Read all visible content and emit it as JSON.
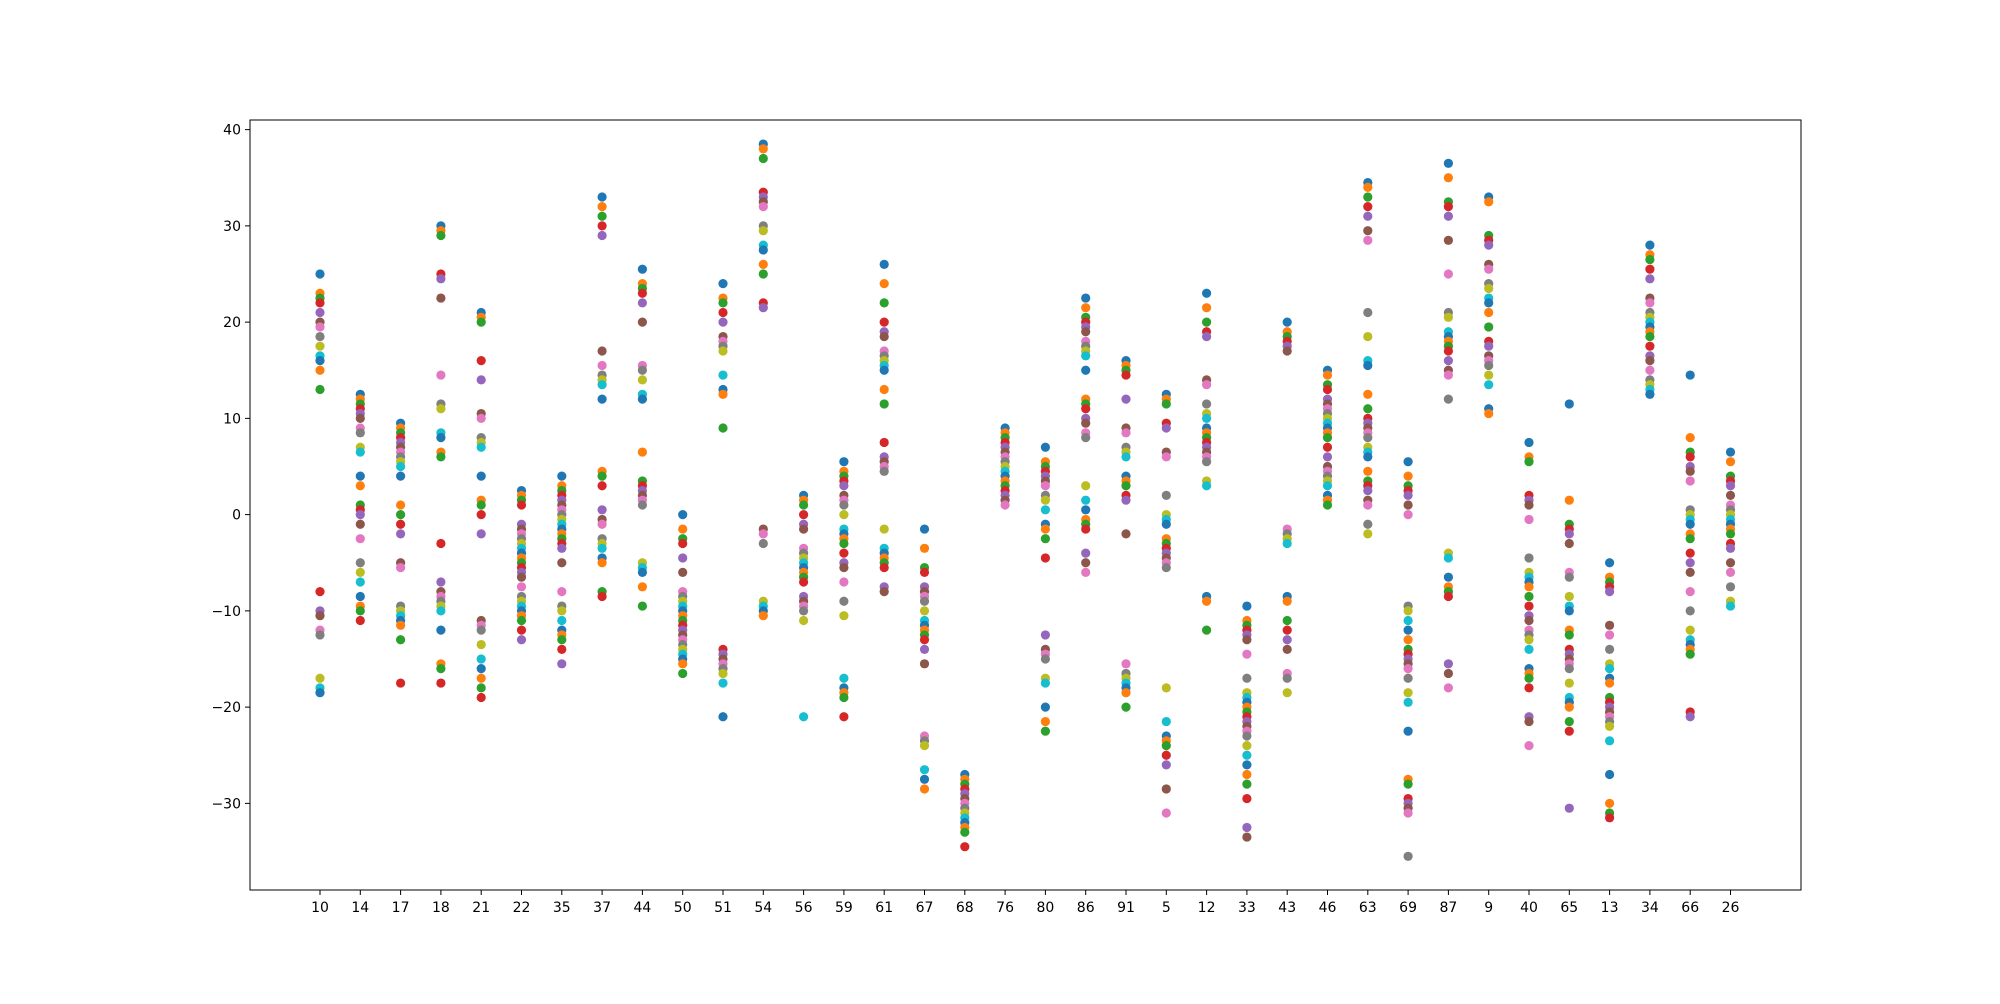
{
  "chart_data": {
    "type": "scatter",
    "title": "",
    "xlabel": "",
    "ylabel": "",
    "ylim": [
      -39,
      41
    ],
    "grid": false,
    "categories": [
      "10",
      "14",
      "17",
      "18",
      "21",
      "22",
      "35",
      "37",
      "44",
      "50",
      "51",
      "54",
      "56",
      "59",
      "61",
      "67",
      "68",
      "76",
      "80",
      "86",
      "91",
      "5",
      "12",
      "33",
      "43",
      "46",
      "63",
      "69",
      "87",
      "9",
      "40",
      "65",
      "13",
      "34",
      "66",
      "26"
    ],
    "y_ticks": [
      -30,
      -20,
      -10,
      0,
      10,
      20,
      30,
      40
    ],
    "color_cycle": [
      "#1f77b4",
      "#ff7f0e",
      "#2ca02c",
      "#d62728",
      "#9467bd",
      "#8c564b",
      "#e377c2",
      "#7f7f7f",
      "#bcbd22",
      "#17becf"
    ],
    "points": [
      [
        25,
        23,
        22.5,
        22,
        21,
        20,
        19.5,
        18.5,
        17.5,
        16.5,
        16,
        15,
        13,
        -8,
        -10,
        -10.5,
        -12,
        -12.5,
        -17,
        -18,
        -18.5
      ],
      [
        12.5,
        12,
        11.5,
        11,
        10.5,
        10,
        9,
        8.5,
        7,
        6.5,
        4,
        3,
        1,
        0.5,
        0,
        -1,
        -2.5,
        -5,
        -6,
        -7,
        -8.5,
        -9.5,
        -10,
        -11
      ],
      [
        9.5,
        9,
        8.5,
        8,
        7.5,
        7,
        6.5,
        6,
        5.5,
        5,
        4,
        1,
        0,
        -1,
        -2,
        -5,
        -5.5,
        -9.5,
        -10,
        -10.5,
        -11,
        -11.5,
        -13,
        -17.5
      ],
      [
        30,
        29.5,
        29,
        25,
        24.5,
        22.5,
        14.5,
        11.5,
        11,
        8.5,
        8,
        6.5,
        6,
        -3,
        -7,
        -8,
        -8.5,
        -9,
        -9.5,
        -10,
        -12,
        -15.5,
        -16,
        -17.5
      ],
      [
        21,
        20.5,
        20,
        16,
        14,
        10.5,
        10,
        8,
        7.5,
        7,
        4,
        1.5,
        1,
        0,
        -2,
        -11,
        -11.5,
        -12,
        -13.5,
        -15,
        -16,
        -17,
        -18,
        -19
      ],
      [
        2.5,
        2,
        1.5,
        1,
        -1,
        -1.5,
        -2,
        -2.5,
        -3,
        -3.5,
        -4,
        -4.5,
        -5,
        -5.5,
        -6,
        -6.5,
        -7.5,
        -8.5,
        -9,
        -9.5,
        -10,
        -10.5,
        -11,
        -12,
        -13
      ],
      [
        4,
        3,
        2.5,
        2,
        1.5,
        1,
        0.5,
        0,
        -0.5,
        -1,
        -1.5,
        -2,
        -2.5,
        -3,
        -3.5,
        -5,
        -8,
        -9.5,
        -10,
        -11,
        -12,
        -12.5,
        -13,
        -14,
        -15.5
      ],
      [
        33,
        32,
        31,
        30,
        29,
        17,
        15.5,
        14.5,
        14,
        13.5,
        12,
        4.5,
        4,
        3,
        0.5,
        -0.5,
        -1,
        -2.5,
        -3,
        -3.5,
        -4.5,
        -5,
        -8,
        -8.5
      ],
      [
        25.5,
        24,
        23.5,
        23,
        22,
        20,
        15.5,
        15,
        14,
        12.5,
        12,
        6.5,
        3.5,
        3,
        2.5,
        2,
        1.5,
        1,
        -5,
        -5.5,
        -6,
        -7.5,
        -9.5
      ],
      [
        0,
        -1.5,
        -2.5,
        -3,
        -4.5,
        -6,
        -8,
        -8.5,
        -9,
        -9.5,
        -10,
        -10.5,
        -11,
        -11.5,
        -12,
        -12.5,
        -13,
        -13.5,
        -14,
        -14.5,
        -15,
        -15.5,
        -16.5
      ],
      [
        24,
        22.5,
        22,
        21,
        20,
        18.5,
        18,
        17.5,
        17,
        14.5,
        13,
        12.5,
        9,
        -14,
        -14.5,
        -15,
        -15.5,
        -16,
        -16.5,
        -17.5,
        -21
      ],
      [
        38.5,
        38,
        37,
        33.5,
        33,
        32.5,
        32,
        30,
        29.5,
        28,
        27.5,
        26,
        25,
        22,
        21.5,
        -1.5,
        -2,
        -3,
        -9,
        -9.5,
        -10,
        -10.5
      ],
      [
        2,
        1.5,
        1,
        0,
        -1,
        -1.5,
        -3.5,
        -4,
        -4.5,
        -5,
        -5.5,
        -6,
        -6.5,
        -7,
        -8.5,
        -9,
        -9.5,
        -10,
        -11,
        -21
      ],
      [
        5.5,
        4.5,
        4,
        3.5,
        3,
        2,
        1.5,
        1,
        0,
        -1.5,
        -2,
        -2.5,
        -3,
        -4,
        -5,
        -5.5,
        -7,
        -9,
        -10.5,
        -17,
        -18,
        -18.5,
        -19,
        -21
      ],
      [
        26,
        24,
        22,
        20,
        19,
        18.5,
        17,
        16.5,
        16,
        15.5,
        15,
        13,
        11.5,
        7.5,
        6,
        5.5,
        5,
        4.5,
        -1.5,
        -3.5,
        -4,
        -4.5,
        -5,
        -5.5,
        -7.5,
        -8
      ],
      [
        -1.5,
        -3.5,
        -5.5,
        -6,
        -7.5,
        -8,
        -8.5,
        -9,
        -10,
        -11,
        -11.5,
        -12,
        -12.5,
        -13,
        -14,
        -15.5,
        -23,
        -23.5,
        -24,
        -26.5,
        -27.5,
        -28.5
      ],
      [
        -27,
        -27.5,
        -28,
        -28.5,
        -29,
        -29.5,
        -30,
        -30.5,
        -31,
        -31.5,
        -32,
        -32.5,
        -33,
        -34.5
      ],
      [
        9,
        8.5,
        8,
        7.5,
        7,
        6.5,
        6,
        5.5,
        5,
        4.5,
        4,
        3.5,
        3,
        2.5,
        2,
        1.5,
        1
      ],
      [
        7,
        5.5,
        5,
        4.5,
        4,
        3.5,
        3,
        2,
        1.5,
        0.5,
        -1,
        -1.5,
        -2.5,
        -4.5,
        -12.5,
        -14,
        -14.5,
        -15,
        -17,
        -17.5,
        -20,
        -21.5,
        -22.5
      ],
      [
        22.5,
        21.5,
        20.5,
        20,
        19.5,
        19,
        18,
        17.5,
        17,
        16.5,
        15,
        12,
        11.5,
        11,
        10,
        9.5,
        8.5,
        8,
        3,
        1.5,
        0.5,
        -0.5,
        -1,
        -1.5,
        -4,
        -5,
        -6
      ],
      [
        16,
        15.5,
        15,
        14.5,
        12,
        9,
        8.5,
        7,
        6.5,
        6,
        4,
        3.5,
        3,
        2,
        1.5,
        -2,
        -15.5,
        -16.5,
        -17,
        -17.5,
        -18,
        -18.5,
        -20
      ],
      [
        12.5,
        12,
        11.5,
        9.5,
        9,
        6.5,
        6,
        2,
        0,
        -0.5,
        -1,
        -2.5,
        -3,
        -3.5,
        -4,
        -4.5,
        -5,
        -5.5,
        -18,
        -21.5,
        -23,
        -23.5,
        -24,
        -25,
        -26,
        -28.5,
        -31
      ],
      [
        23,
        21.5,
        20,
        19,
        18.5,
        14,
        13.5,
        11.5,
        10.5,
        10,
        9,
        8.5,
        8,
        7.5,
        7,
        6.5,
        6,
        5.5,
        3.5,
        3,
        -8.5,
        -9,
        -12
      ],
      [
        -9.5,
        -11,
        -11.5,
        -12,
        -12.5,
        -13,
        -14.5,
        -17,
        -18.5,
        -19,
        -19.5,
        -20,
        -20.5,
        -21,
        -21.5,
        -22,
        -22.5,
        -23,
        -24,
        -25,
        -26,
        -27,
        -28,
        -29.5,
        -32.5,
        -33.5
      ],
      [
        20,
        19,
        18.5,
        18,
        17.5,
        17,
        -1.5,
        -2,
        -2.5,
        -3,
        -8.5,
        -9,
        -11,
        -12,
        -13,
        -14,
        -16.5,
        -17,
        -18.5
      ],
      [
        15,
        14.5,
        13.5,
        13,
        12,
        11.5,
        11,
        10.5,
        10,
        9.5,
        9,
        8.5,
        8,
        7,
        6,
        5,
        4.5,
        4,
        3.5,
        3,
        2,
        1.5,
        1
      ],
      [
        34.5,
        34,
        33,
        32,
        31,
        29.5,
        28.5,
        21,
        18.5,
        16,
        15.5,
        12.5,
        11,
        10,
        9.5,
        9,
        8.5,
        8,
        7,
        6.5,
        6,
        4.5,
        3.5,
        3,
        2.5,
        1.5,
        1,
        -1,
        -2
      ],
      [
        5.5,
        4,
        3,
        2.5,
        2,
        1,
        0,
        -9.5,
        -10,
        -11,
        -12,
        -13,
        -14,
        -14.5,
        -15,
        -15.5,
        -16,
        -17,
        -18.5,
        -19.5,
        -22.5,
        -27.5,
        -28,
        -29.5,
        -30,
        -30.5,
        -31,
        -35.5
      ],
      [
        36.5,
        35,
        32.5,
        32,
        31,
        28.5,
        25,
        21,
        20.5,
        19,
        18.5,
        18,
        17.5,
        17,
        16,
        15,
        14.5,
        12,
        -4,
        -4.5,
        -6.5,
        -7.5,
        -8,
        -8.5,
        -15.5,
        -16.5,
        -18
      ],
      [
        33,
        32.5,
        29,
        28.5,
        28,
        26,
        25.5,
        24,
        23.5,
        22.5,
        22,
        21,
        19.5,
        18,
        17.5,
        16.5,
        16,
        15.5,
        14.5,
        13.5,
        11,
        10.5
      ],
      [
        7.5,
        6,
        5.5,
        2,
        1.5,
        1,
        -0.5,
        -4.5,
        -6,
        -6.5,
        -7,
        -7.5,
        -8.5,
        -9.5,
        -10.5,
        -11,
        -12,
        -12.5,
        -13,
        -14,
        -16,
        -16.5,
        -17,
        -18,
        -21,
        -21.5,
        -24
      ],
      [
        11.5,
        1.5,
        -1,
        -1.5,
        -2,
        -3,
        -6,
        -6.5,
        -8.5,
        -9.5,
        -10,
        -12,
        -12.5,
        -14,
        -14.5,
        -15,
        -15.5,
        -16,
        -17.5,
        -19,
        -19.5,
        -20,
        -21.5,
        -22.5,
        -30.5
      ],
      [
        -5,
        -6.5,
        -7,
        -7.5,
        -8,
        -11.5,
        -12.5,
        -14,
        -15.5,
        -16,
        -17,
        -17.5,
        -19,
        -19.5,
        -20,
        -20.5,
        -21,
        -21.5,
        -22,
        -23.5,
        -27,
        -30,
        -31,
        -31.5
      ],
      [
        28,
        27,
        26.5,
        25.5,
        24.5,
        22.5,
        22,
        21,
        20.5,
        20,
        19.5,
        19,
        18.5,
        17.5,
        16.5,
        16,
        15,
        14,
        13.5,
        13,
        12.5
      ],
      [
        14.5,
        8,
        6.5,
        6,
        5,
        4.5,
        3.5,
        0.5,
        0,
        -0.5,
        -1,
        -2,
        -2.5,
        -4,
        -5,
        -6,
        -8,
        -10,
        -12,
        -13,
        -13.5,
        -14,
        -14.5,
        -20.5,
        -21
      ],
      [
        6.5,
        5.5,
        4,
        3.5,
        3,
        2,
        1,
        0.5,
        0,
        -0.5,
        -1,
        -1.5,
        -2,
        -3,
        -3.5,
        -5,
        -6,
        -7.5,
        -9,
        -9.5
      ]
    ]
  }
}
